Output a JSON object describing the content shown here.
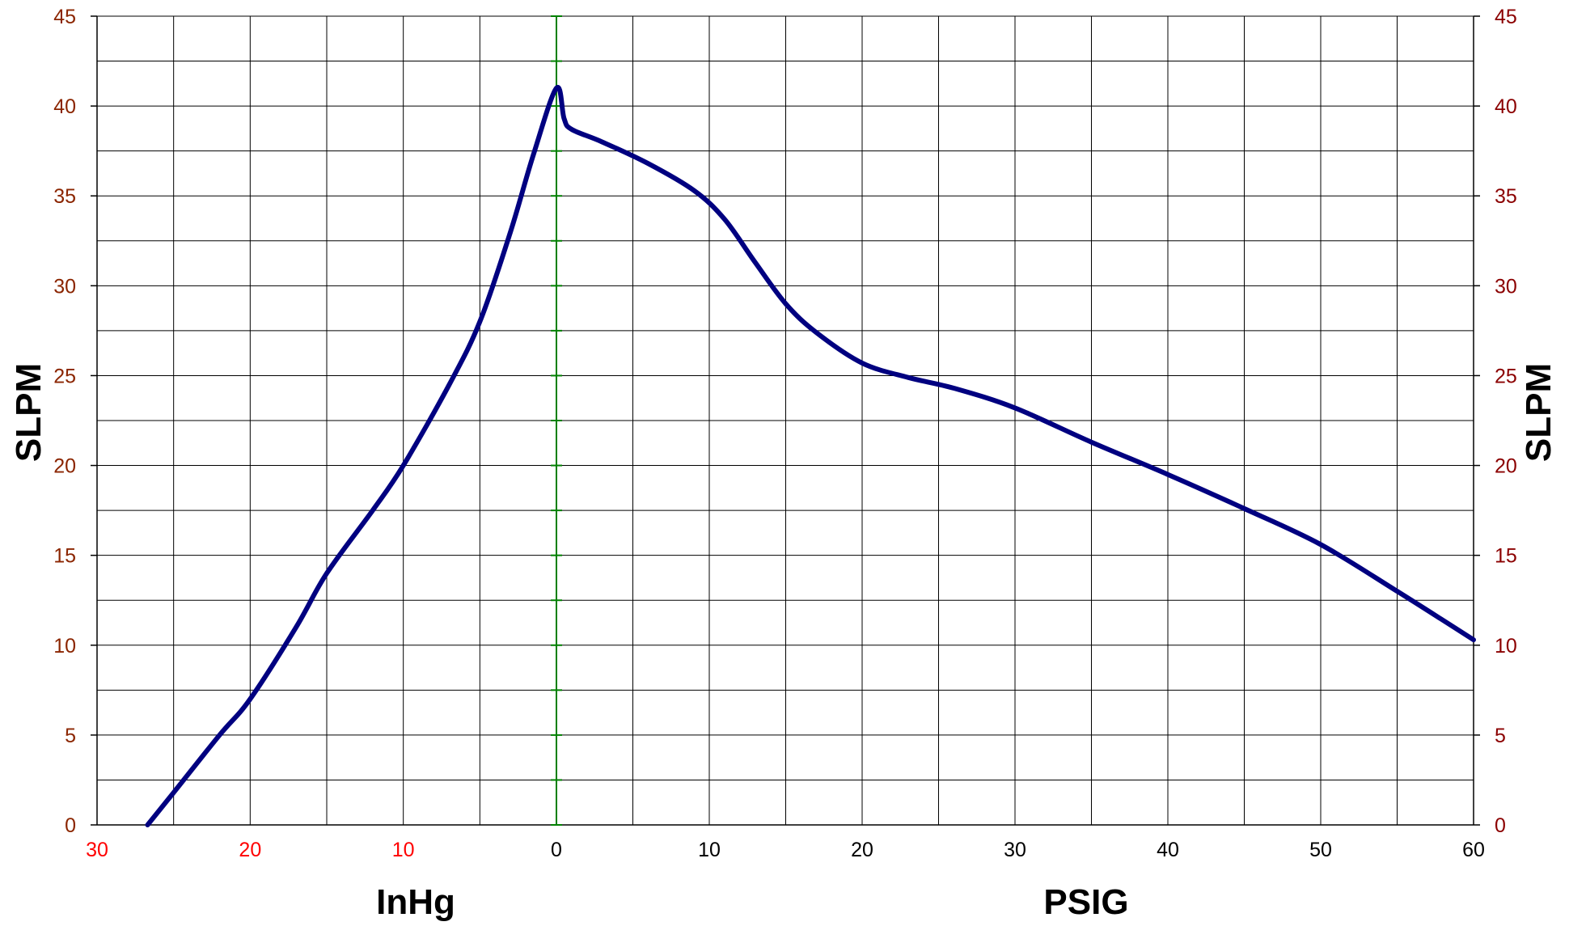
{
  "chart_data": {
    "type": "line",
    "title": "",
    "ylabel_left": "SLPM",
    "ylabel_right": "SLPM",
    "xlabel_vacuum": "InHg",
    "xlabel_pressure": "PSIG",
    "ylim": [
      0,
      45
    ],
    "y_ticks": [
      0,
      5,
      10,
      15,
      20,
      25,
      30,
      35,
      40,
      45
    ],
    "vacuum_range": [
      30,
      0
    ],
    "pressure_range": [
      0,
      60
    ],
    "vacuum_ticks": [
      "30",
      "20",
      "10"
    ],
    "zero_tick": "0",
    "pressure_ticks": [
      "10",
      "20",
      "30",
      "40",
      "50",
      "60"
    ],
    "grid": true,
    "colors": {
      "curve": "#000080",
      "zero_line": "#008000",
      "left_ticks": "#8b2500",
      "right_ticks": "#8b0000",
      "vacuum_ticks": "#ff0000",
      "pressure_ticks": "#000000",
      "grid": "#000000"
    },
    "series": [
      {
        "vacuum_inHg": [
          26.7,
          25,
          22,
          20,
          17,
          15,
          12,
          10,
          7,
          5,
          3,
          1.5,
          0
        ],
        "vacuum_slpm": [
          0,
          1.8,
          5,
          7,
          11,
          14,
          17.5,
          20,
          24.5,
          28,
          33,
          37.3,
          41
        ],
        "pressure_psig": [
          0,
          0.5,
          1,
          3,
          6,
          9,
          11,
          13,
          15,
          17,
          20,
          23,
          26,
          30,
          35,
          40,
          45,
          50,
          55,
          60
        ],
        "pressure_slpm": [
          41,
          39.3,
          38.7,
          38,
          36.8,
          35.3,
          33.7,
          31.3,
          29,
          27.4,
          25.7,
          24.9,
          24.3,
          23.2,
          21.3,
          19.5,
          17.6,
          15.6,
          13,
          10.3
        ]
      }
    ]
  }
}
